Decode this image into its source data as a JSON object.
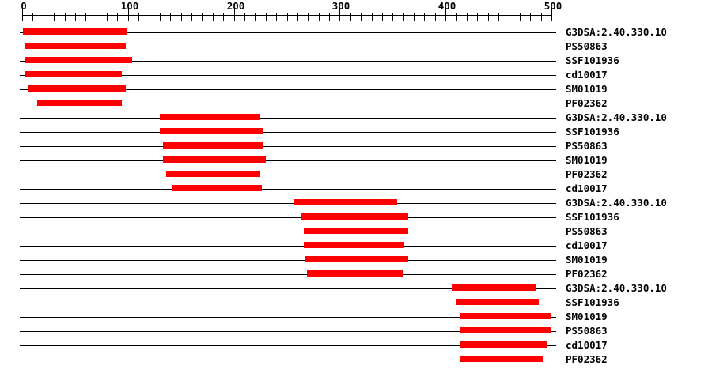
{
  "chart_data": {
    "type": "bar",
    "subtype": "horizontal-range-track",
    "title": "",
    "description": "Protein sequence domain-match tracks: red bars mark matched regions along residues 0-500",
    "axis": {
      "min": 0,
      "max": 500,
      "major_tick_interval": 100,
      "minor_tick_interval": 10,
      "tick_labels": [
        "0",
        "100",
        "200",
        "300",
        "400",
        "500"
      ],
      "position": "top"
    },
    "legend_position": "none",
    "grid": false,
    "colors": {
      "bar": "#ff0000",
      "line": "#000000",
      "background": "#ffffff",
      "text": "#000000"
    },
    "rows": [
      {
        "label": "G3DSA:2.40.330.10",
        "start": 1,
        "end": 100
      },
      {
        "label": "PS50863",
        "start": 2,
        "end": 98
      },
      {
        "label": "SSF101936",
        "start": 2,
        "end": 104
      },
      {
        "label": "cd10017",
        "start": 2,
        "end": 94
      },
      {
        "label": "SM01019",
        "start": 5,
        "end": 98
      },
      {
        "label": "PF02362",
        "start": 14,
        "end": 94
      },
      {
        "label": "G3DSA:2.40.330.10",
        "start": 130,
        "end": 225
      },
      {
        "label": "SSF101936",
        "start": 130,
        "end": 227
      },
      {
        "label": "PS50863",
        "start": 133,
        "end": 228
      },
      {
        "label": "SM01019",
        "start": 133,
        "end": 230
      },
      {
        "label": "PF02362",
        "start": 136,
        "end": 225
      },
      {
        "label": "cd10017",
        "start": 141,
        "end": 226
      },
      {
        "label": "G3DSA:2.40.330.10",
        "start": 257,
        "end": 354
      },
      {
        "label": "SSF101936",
        "start": 263,
        "end": 365
      },
      {
        "label": "PS50863",
        "start": 266,
        "end": 365
      },
      {
        "label": "cd10017",
        "start": 266,
        "end": 361
      },
      {
        "label": "SM01019",
        "start": 267,
        "end": 365
      },
      {
        "label": "PF02362",
        "start": 269,
        "end": 360
      },
      {
        "label": "G3DSA:2.40.330.10",
        "start": 406,
        "end": 485
      },
      {
        "label": "SSF101936",
        "start": 410,
        "end": 488
      },
      {
        "label": "SM01019",
        "start": 413,
        "end": 500
      },
      {
        "label": "PS50863",
        "start": 414,
        "end": 500
      },
      {
        "label": "cd10017",
        "start": 414,
        "end": 496
      },
      {
        "label": "PF02362",
        "start": 413,
        "end": 492
      }
    ]
  }
}
